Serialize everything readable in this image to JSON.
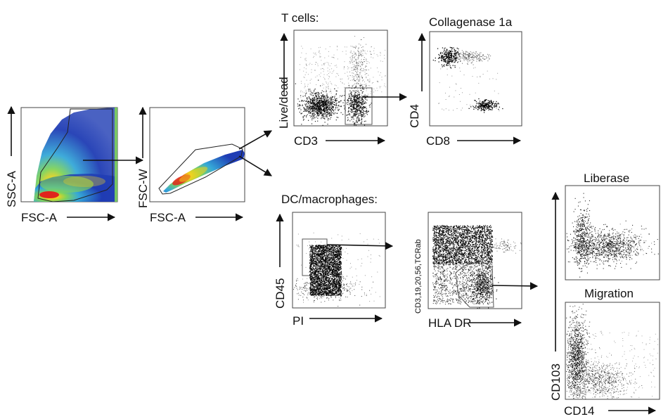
{
  "colors": {
    "density_low": "#1f3cb4",
    "density_mid": "#35a8d8",
    "density_mid2": "#7fd35a",
    "density_high": "#f2d21e",
    "density_peak": "#e0241c",
    "dots": "#000000",
    "gate": "#333333"
  },
  "panels": {
    "scatter_gating": {
      "x_label": "FSC-A",
      "y_label": "SSC-A"
    },
    "singlets": {
      "x_label": "FSC-A",
      "y_label": "FSC-W"
    },
    "t_cells": {
      "header": "T cells:",
      "x_label": "CD3",
      "y_label": "Live/dead"
    },
    "collagenase": {
      "title": "Collagenase 1a",
      "x_label": "CD8",
      "y_label": "CD4"
    },
    "dc_macrophages": {
      "header": "DC/macrophages:",
      "x_label": "PI",
      "y_label": "CD45"
    },
    "lineage": {
      "x_label": "HLA DR",
      "y_label": "CD3,19,20,56,TCRab"
    },
    "liberase": {
      "title": "Liberase"
    },
    "migration": {
      "title": "Migration",
      "x_label": "CD14",
      "y_label": "CD103"
    }
  }
}
